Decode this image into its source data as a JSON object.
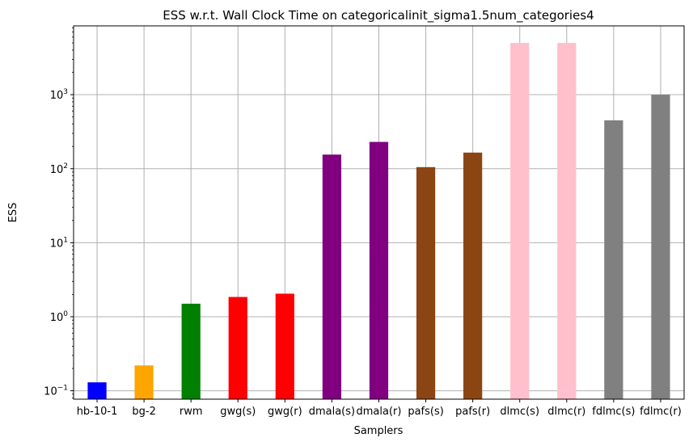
{
  "chart_data": {
    "type": "bar",
    "title": "ESS w.r.t. Wall Clock Time on categoricalinit_sigma1.5num_categories4",
    "xlabel": "Samplers",
    "ylabel": "ESS",
    "yscale": "log",
    "ylim": [
      0.077,
      8500
    ],
    "grid": true,
    "categories": [
      "hb-10-1",
      "bg-2",
      "rwm",
      "gwg(s)",
      "gwg(r)",
      "dmala(s)",
      "dmala(r)",
      "pafs(s)",
      "pafs(r)",
      "dlmc(s)",
      "dlmc(r)",
      "fdlmc(s)",
      "fdlmc(r)"
    ],
    "values": [
      0.13,
      0.22,
      1.5,
      1.85,
      2.05,
      155,
      230,
      105,
      165,
      5000,
      5000,
      450,
      1000
    ],
    "colors": [
      "#0000ff",
      "#ffa500",
      "#008000",
      "#ff0000",
      "#ff0000",
      "#800080",
      "#800080",
      "#8b4513",
      "#8b4513",
      "#ffc0cb",
      "#ffc0cb",
      "#808080",
      "#808080"
    ],
    "y_tick_labels": [
      {
        "exp": -1,
        "base": "10",
        "power": "−1"
      },
      {
        "exp": 0,
        "base": "10",
        "power": "0"
      },
      {
        "exp": 1,
        "base": "10",
        "power": "1"
      },
      {
        "exp": 2,
        "base": "10",
        "power": "2"
      },
      {
        "exp": 3,
        "base": "10",
        "power": "3"
      }
    ]
  }
}
